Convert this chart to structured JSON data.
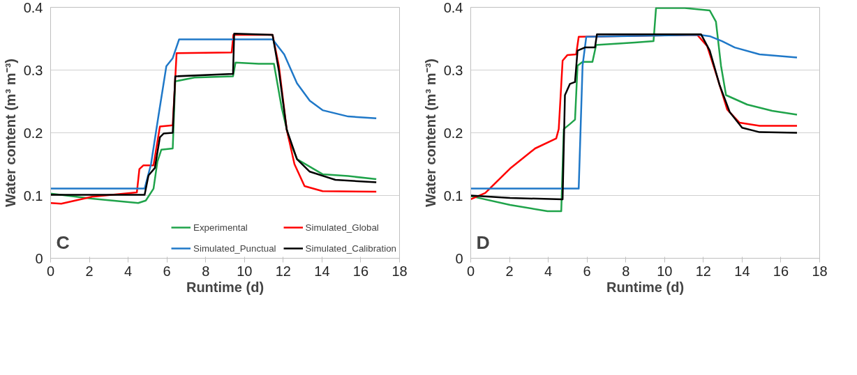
{
  "chart_data": [
    {
      "type": "line",
      "xlabel": "Runtime (d)",
      "ylabel": "Water content (m³ m⁻³)",
      "annotations": [
        "C"
      ],
      "xlim": [
        0,
        18
      ],
      "ylim": [
        0,
        0.4
      ],
      "xticks": [
        0,
        2,
        4,
        6,
        8,
        10,
        12,
        14,
        16,
        18
      ],
      "yticks": [
        0,
        0.1,
        0.2,
        0.3,
        0.4
      ],
      "grid": "y",
      "legend": "bottom right",
      "series": [
        {
          "name": "Experimental",
          "color": "#1fa34a",
          "x": [
            0,
            2.14,
            4.52,
            4.91,
            5.31,
            5.51,
            5.71,
            6.3,
            6.43,
            7.42,
            9.41,
            9.54,
            10.73,
            11.52,
            11.92,
            12.31,
            12.71,
            14.03,
            15.35,
            16.8
          ],
          "values": [
            0.103,
            0.095,
            0.088,
            0.092,
            0.111,
            0.154,
            0.173,
            0.175,
            0.282,
            0.288,
            0.29,
            0.312,
            0.31,
            0.31,
            0.24,
            0.189,
            0.158,
            0.134,
            0.131,
            0.126
          ]
        },
        {
          "name": "Simulated_Global",
          "color": "#ff0000",
          "x": [
            0,
            0.55,
            2.14,
            4.45,
            4.58,
            4.78,
            5.31,
            5.64,
            6.3,
            6.5,
            9.34,
            9.43,
            11.45,
            11.78,
            12.18,
            12.58,
            13.1,
            14.03,
            16.8
          ],
          "values": [
            0.088,
            0.087,
            0.098,
            0.105,
            0.142,
            0.148,
            0.148,
            0.21,
            0.212,
            0.327,
            0.328,
            0.356,
            0.356,
            0.306,
            0.205,
            0.15,
            0.115,
            0.107,
            0.106
          ]
        },
        {
          "name": "Simulated_Punctual",
          "color": "#1f78c8",
          "x": [
            0,
            4.85,
            5.18,
            5.57,
            5.97,
            6.3,
            6.63,
            11.45,
            12.05,
            12.71,
            13.37,
            14.03,
            15.35,
            16.8
          ],
          "values": [
            0.111,
            0.111,
            0.15,
            0.228,
            0.306,
            0.319,
            0.349,
            0.349,
            0.325,
            0.279,
            0.251,
            0.236,
            0.226,
            0.223
          ]
        },
        {
          "name": "Simulated_Calibration",
          "color": "#000000",
          "x": [
            0,
            4.85,
            5.05,
            5.38,
            5.64,
            5.84,
            6.3,
            6.43,
            9.41,
            9.47,
            11.45,
            11.78,
            12.18,
            12.71,
            13.37,
            14.69,
            16.8
          ],
          "values": [
            0.101,
            0.101,
            0.132,
            0.144,
            0.193,
            0.199,
            0.2,
            0.29,
            0.294,
            0.358,
            0.356,
            0.298,
            0.205,
            0.158,
            0.138,
            0.125,
            0.121
          ]
        }
      ]
    },
    {
      "type": "line",
      "xlabel": "Runtime (d)",
      "ylabel": "Water content (m³ m⁻³)",
      "annotations": [
        "D"
      ],
      "xlim": [
        0,
        18
      ],
      "ylim": [
        0,
        0.4
      ],
      "xticks": [
        0,
        2,
        4,
        6,
        8,
        10,
        12,
        14,
        16,
        18
      ],
      "yticks": [
        0,
        0.1,
        0.2,
        0.3,
        0.4
      ],
      "grid": "y",
      "series": [
        {
          "color": "#1fa34a",
          "x": [
            0,
            2.03,
            3.96,
            4.67,
            4.8,
            5.12,
            5.38,
            5.51,
            5.77,
            6.28,
            6.47,
            8.47,
            9.43,
            9.56,
            11.04,
            12.33,
            12.65,
            12.91,
            13.17,
            14.26,
            15.55,
            16.83
          ],
          "values": [
            0.099,
            0.085,
            0.075,
            0.075,
            0.206,
            0.214,
            0.221,
            0.307,
            0.313,
            0.313,
            0.34,
            0.344,
            0.346,
            0.399,
            0.399,
            0.395,
            0.377,
            0.307,
            0.26,
            0.245,
            0.235,
            0.229
          ]
        },
        {
          "color": "#ff0000",
          "x": [
            0,
            0.75,
            2.03,
            3.32,
            4.41,
            4.54,
            4.74,
            4.99,
            5.44,
            5.57,
            11.69,
            12.2,
            12.72,
            13.23,
            13.87,
            14.9,
            16.83
          ],
          "values": [
            0.094,
            0.104,
            0.143,
            0.175,
            0.191,
            0.206,
            0.315,
            0.324,
            0.325,
            0.353,
            0.356,
            0.338,
            0.288,
            0.237,
            0.216,
            0.211,
            0.211
          ]
        },
        {
          "color": "#1f78c8",
          "x": [
            0,
            5.57,
            5.77,
            5.96,
            11.81,
            12.33,
            12.97,
            13.62,
            14.9,
            16.83
          ],
          "values": [
            0.111,
            0.111,
            0.307,
            0.353,
            0.356,
            0.354,
            0.346,
            0.336,
            0.325,
            0.32
          ]
        },
        {
          "color": "#000000",
          "x": [
            0,
            2.03,
            4.74,
            4.86,
            5.12,
            5.38,
            5.51,
            5.89,
            6.41,
            6.51,
            11.88,
            12.33,
            12.84,
            13.36,
            14.0,
            14.9,
            16.83
          ],
          "values": [
            0.1,
            0.096,
            0.094,
            0.26,
            0.278,
            0.281,
            0.331,
            0.336,
            0.336,
            0.357,
            0.357,
            0.331,
            0.276,
            0.233,
            0.208,
            0.201,
            0.2
          ]
        }
      ]
    }
  ]
}
